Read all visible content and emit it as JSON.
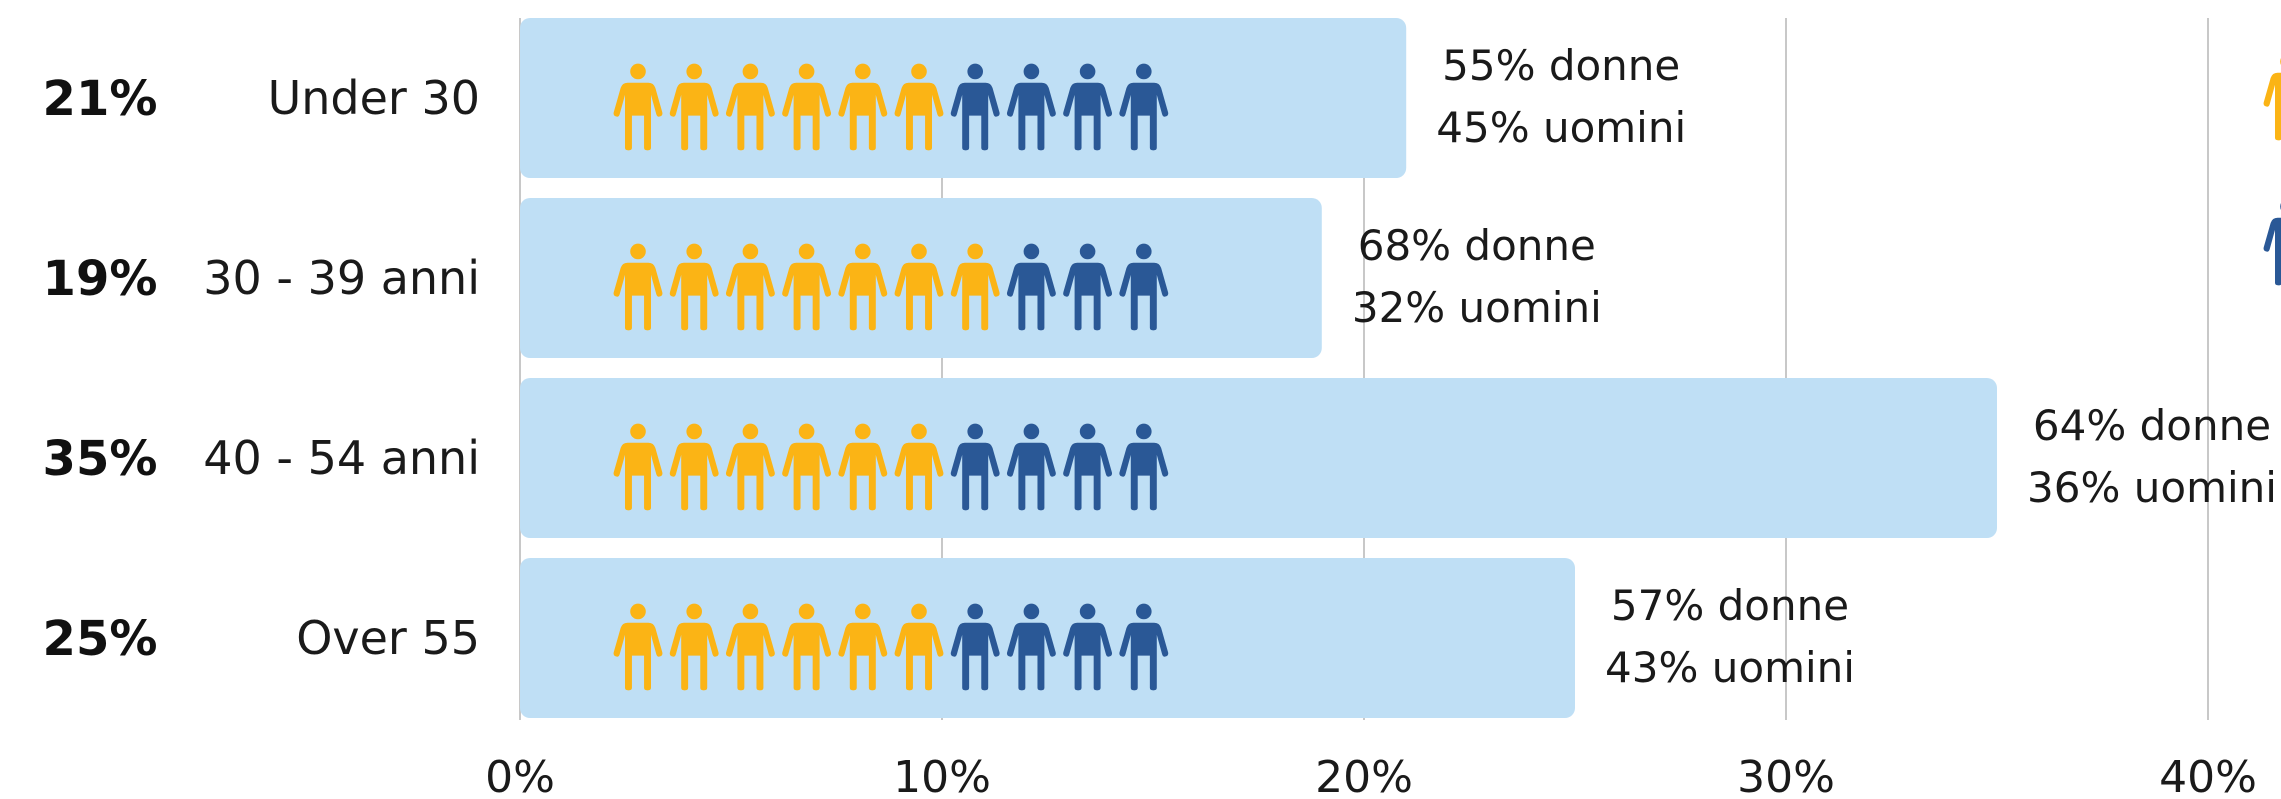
{
  "chart_data": {
    "type": "bar",
    "orientation": "horizontal",
    "categories": [
      "Under 30",
      "30 - 39 anni",
      "40 - 54 anni",
      "Over 55"
    ],
    "values": [
      21,
      19,
      35,
      25
    ],
    "value_labels": [
      "21%",
      "19%",
      "35%",
      "25%"
    ],
    "women_pct": [
      55,
      68,
      64,
      57
    ],
    "men_pct": [
      45,
      32,
      36,
      43
    ],
    "women_labels": [
      "55% donne",
      "68% donne",
      "64% donne",
      "57% donne"
    ],
    "men_labels": [
      "45% uomini",
      "32% uomini",
      "36% uomini",
      "43% uomini"
    ],
    "icon_counts_women": [
      6,
      7,
      6,
      6
    ],
    "icon_counts_total": 10,
    "xlim": [
      0,
      40
    ],
    "x_ticks": [
      0,
      10,
      20,
      30,
      40
    ],
    "x_tick_labels": [
      "0%",
      "10%",
      "20%",
      "30%",
      "40%"
    ],
    "grid": true,
    "colors": {
      "bar": "#bfdff5",
      "women_icon": "#fbb415",
      "men_icon": "#2a5896",
      "grid": "#c8c8c8"
    },
    "legend": {
      "placement": "right (partially cropped)",
      "icons": [
        "woman-icon",
        "man-icon"
      ]
    }
  }
}
